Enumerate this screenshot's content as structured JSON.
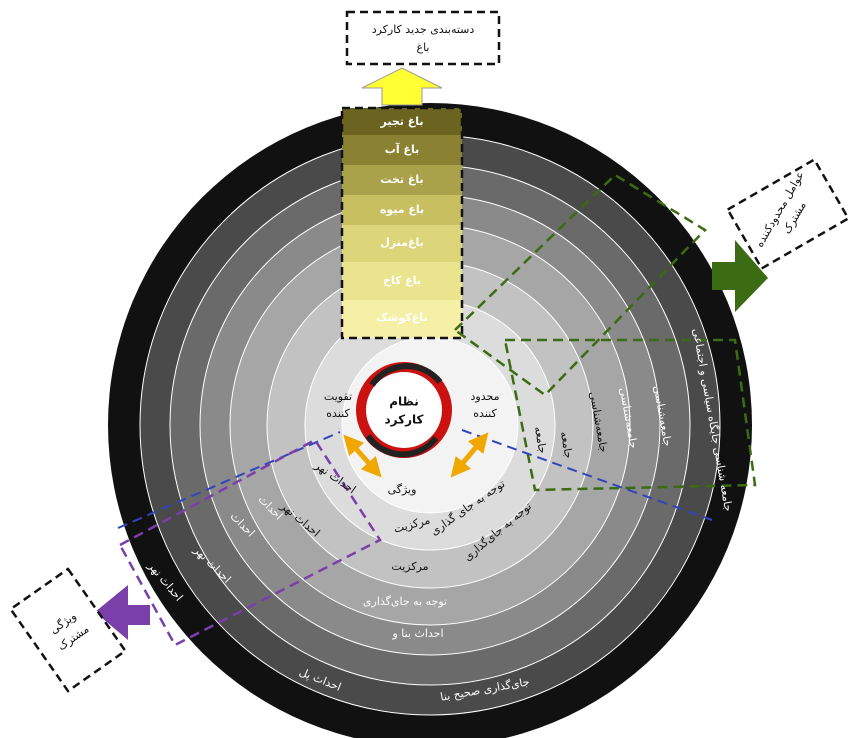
{
  "top_box": [
    "دسته‌بندی جدید کارکرد",
    "باغ"
  ],
  "gardens": [
    "باغ تجیر",
    "باغ آب",
    "باغ تخت",
    "باغ میوه",
    "باغ‌منزل",
    "باغ کاخ",
    "باغ‌کوشک"
  ],
  "center": {
    "title": [
      "نظام",
      "کارکرد"
    ],
    "left": [
      "تقویت",
      "کننده"
    ],
    "right": [
      "محدود",
      "کننده"
    ],
    "bottom": "ویژگی"
  },
  "right_box": [
    "عوامل محدودکننده",
    "مشترک"
  ],
  "left_box": [
    "ویژگی",
    "مشترک"
  ],
  "ring_labels": [
    "مرکزیت",
    "توجه به جای گذاری",
    "احداث نهر",
    "مرکزیت",
    "توجه به جای‌گذاری",
    "احداث نهر",
    "توجه به جای‌گذاری",
    "احداث بنا و",
    "احداث پل",
    "جای‌گذاری صحیح بنا",
    "جامعه",
    "جامعه",
    "جامعه‌شناسی",
    "جامعه‌شناسی",
    "جامعه‌شناسی",
    "جامعه شناسی جایگاه سیاسی و اجتماعی",
    "احداث",
    "احداث",
    "احداث نهر",
    "احداث نهر"
  ]
}
